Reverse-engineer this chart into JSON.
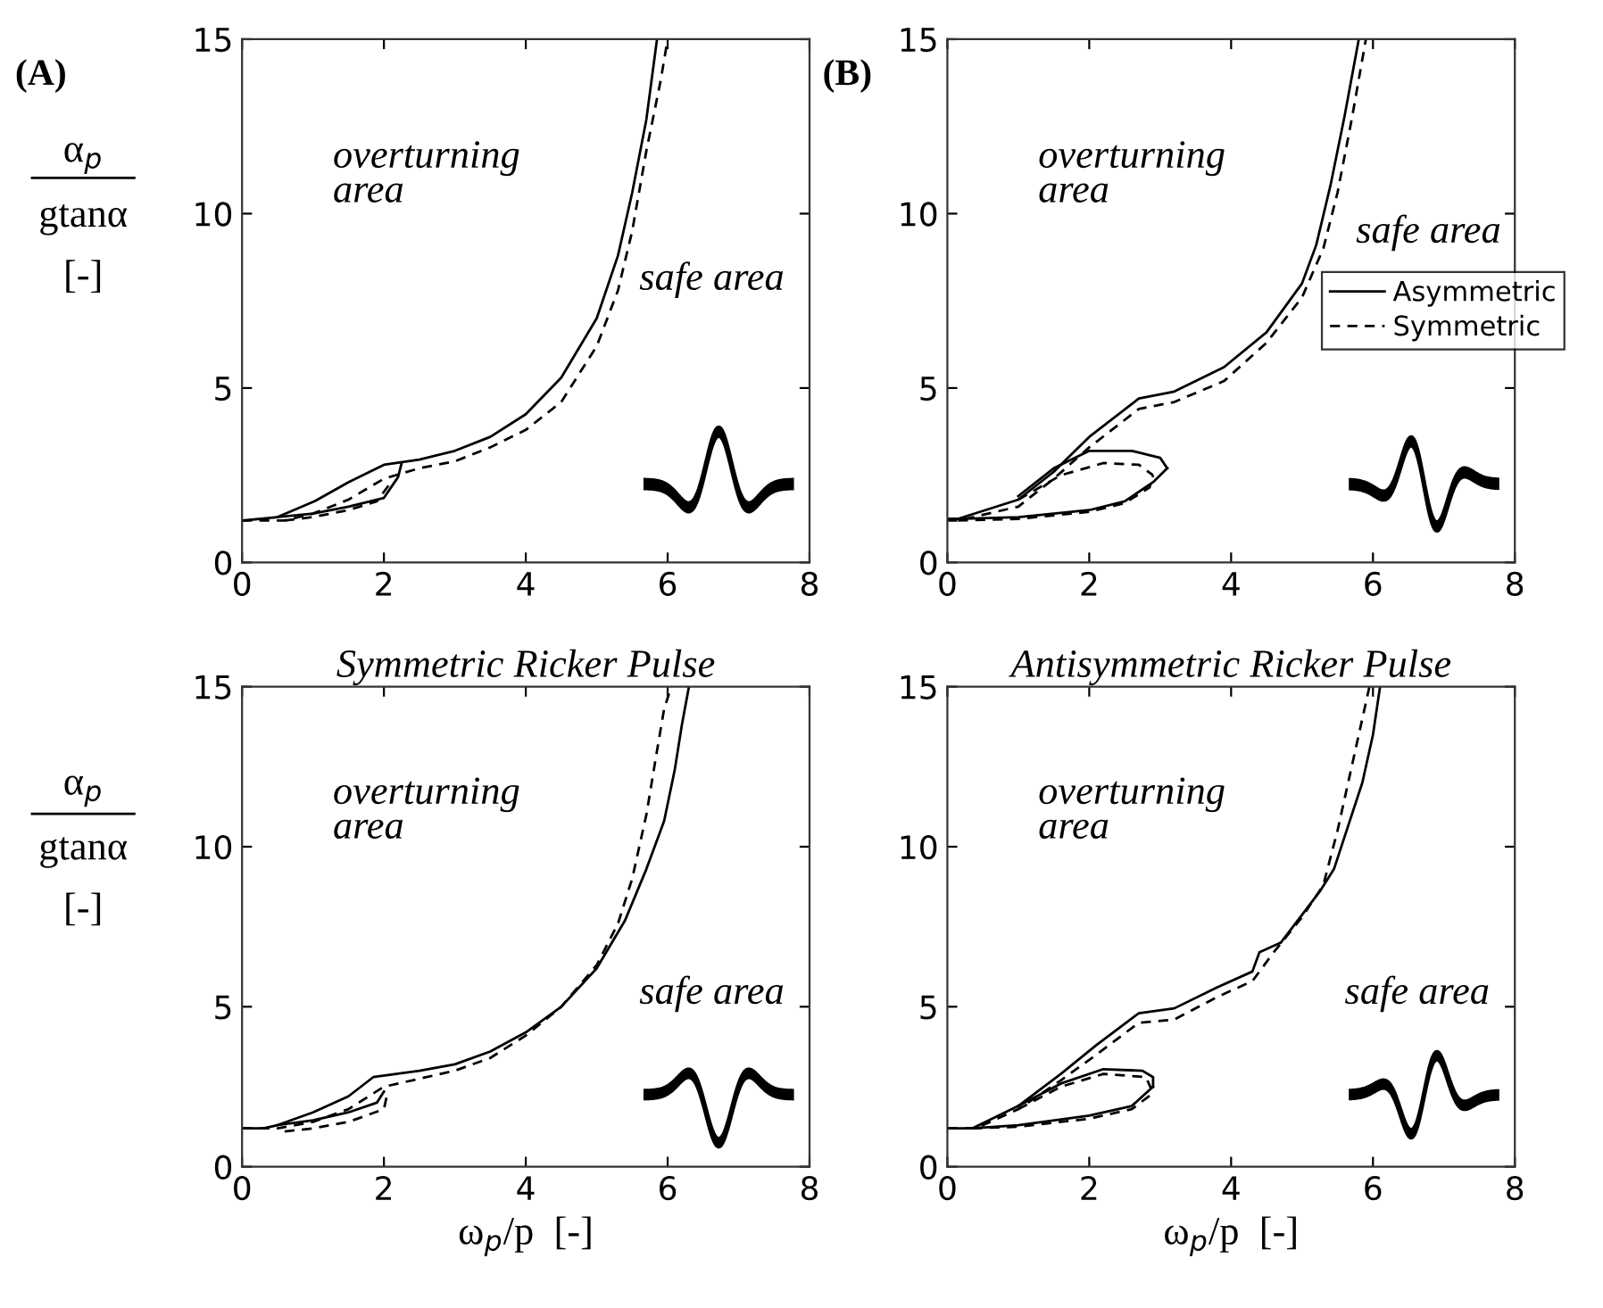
{
  "chart_data": [
    {
      "type": "line",
      "ylabel": "α$_{p}$\ngtanα\n[-]",
      "xlim": [
        0,
        8
      ],
      "ylim": [
        0,
        15
      ],
      "xticks": [
        0,
        2,
        4,
        6,
        8
      ],
      "yticks": [
        0,
        5,
        10,
        15
      ],
      "grid": false,
      "legend": false,
      "annotations": [
        "(A)",
        "overturning\narea",
        "safe area"
      ],
      "series": [
        {
          "color": "#000000",
          "line_style": "solid",
          "x": [
            0,
            0.5,
            1.03,
            1.5,
            2.0,
            2.5,
            3.0,
            3.5,
            4.0,
            4.5,
            5.0,
            5.3,
            5.5,
            5.7,
            5.85
          ],
          "values": [
            1.2,
            1.3,
            1.76,
            2.3,
            2.8,
            2.95,
            3.2,
            3.6,
            4.25,
            5.3,
            7.0,
            8.8,
            10.6,
            12.7,
            15
          ]
        },
        {
          "color": "#000000",
          "line_style": "solid",
          "x": [
            0.5,
            1.0,
            1.5,
            2.0,
            2.2,
            2.25
          ],
          "values": [
            1.3,
            1.4,
            1.6,
            1.85,
            2.45,
            2.85
          ]
        },
        {
          "color": "#000000",
          "line_style": "dashed",
          "x": [
            0,
            0.6,
            1.0,
            1.5,
            2.0,
            2.5,
            3.0,
            3.5,
            4.0,
            4.5,
            5.0,
            5.3,
            5.5,
            5.7,
            5.9,
            6.0
          ],
          "values": [
            1.2,
            1.2,
            1.4,
            1.8,
            2.4,
            2.7,
            2.9,
            3.3,
            3.8,
            4.6,
            6.2,
            7.8,
            9.5,
            11.8,
            13.8,
            15
          ]
        },
        {
          "color": "#000000",
          "line_style": "dashed",
          "x": [
            0.6,
            1.0,
            1.5,
            1.9,
            2.1
          ],
          "values": [
            1.2,
            1.3,
            1.5,
            1.75,
            2.3
          ]
        }
      ]
    },
    {
      "type": "line",
      "xlim": [
        0,
        8
      ],
      "ylim": [
        0,
        15
      ],
      "xticks": [
        0,
        2,
        4,
        6,
        8
      ],
      "yticks": [
        0,
        5,
        10,
        15
      ],
      "grid": false,
      "legend": "right",
      "annotations": [
        "(B)",
        "overturning\narea",
        "safe area"
      ],
      "series": [
        {
          "name": "Asymmetric",
          "color": "#000000",
          "line_style": "solid",
          "x": [
            0,
            0.15,
            1.0,
            1.5,
            2.0,
            2.7,
            3.2,
            3.9,
            4.5,
            5.0,
            5.2,
            5.4,
            5.6,
            5.8
          ],
          "values": [
            1.25,
            1.25,
            1.8,
            2.6,
            3.6,
            4.7,
            4.9,
            5.6,
            6.6,
            8.0,
            9.1,
            10.8,
            12.8,
            15
          ]
        },
        {
          "color": "#000000",
          "line_style": "solid",
          "x": [
            0.15,
            1.0,
            2.0,
            2.5,
            2.9,
            3.1
          ],
          "values": [
            1.25,
            1.3,
            1.5,
            1.75,
            2.3,
            2.7
          ]
        },
        {
          "color": "#000000",
          "line_style": "solid",
          "x": [
            1.0,
            1.5,
            2.0,
            2.6,
            3.0,
            3.1
          ],
          "values": [
            1.9,
            2.7,
            3.2,
            3.2,
            3.0,
            2.7
          ]
        },
        {
          "name": "Symmetric",
          "color": "#000000",
          "line_style": "dashed",
          "x": [
            0,
            0.15,
            1.0,
            1.5,
            2.0,
            2.7,
            3.2,
            3.9,
            4.5,
            5.0,
            5.3,
            5.5,
            5.7,
            5.9
          ],
          "values": [
            1.2,
            1.2,
            1.6,
            2.4,
            3.3,
            4.4,
            4.6,
            5.2,
            6.3,
            7.6,
            9.0,
            10.6,
            12.7,
            15
          ]
        },
        {
          "color": "#000000",
          "line_style": "dashed",
          "x": [
            0.15,
            1.0,
            2.0,
            2.5,
            2.85,
            2.9
          ],
          "values": [
            1.2,
            1.25,
            1.45,
            1.7,
            2.15,
            2.5
          ]
        },
        {
          "color": "#000000",
          "line_style": "dashed",
          "x": [
            1.0,
            1.6,
            2.2,
            2.7,
            2.9
          ],
          "values": [
            1.8,
            2.5,
            2.85,
            2.8,
            2.5
          ]
        }
      ]
    },
    {
      "type": "line",
      "title": "Symmetric Ricker Pulse",
      "xlabel": "ω$_{p}$/p  [-]",
      "ylabel": "α$_{p}$\ngtanα\n[-]",
      "xlim": [
        0,
        8
      ],
      "ylim": [
        0,
        15
      ],
      "xticks": [
        0,
        2,
        4,
        6,
        8
      ],
      "yticks": [
        0,
        5,
        10,
        15
      ],
      "grid": false,
      "legend": false,
      "annotations": [
        "overturning\narea",
        "safe area"
      ],
      "series": [
        {
          "color": "#000000",
          "line_style": "solid",
          "x": [
            0,
            0.3,
            0.5,
            1.0,
            1.5,
            1.85,
            2.5,
            3.0,
            3.5,
            4.0,
            4.5,
            5.0,
            5.4,
            5.7,
            5.95,
            6.1,
            6.2,
            6.3
          ],
          "values": [
            1.2,
            1.2,
            1.3,
            1.7,
            2.2,
            2.8,
            3.0,
            3.2,
            3.6,
            4.2,
            5.0,
            6.2,
            7.7,
            9.3,
            10.8,
            12.4,
            13.8,
            15
          ]
        },
        {
          "color": "#000000",
          "line_style": "solid",
          "x": [
            0.5,
            1.0,
            1.5,
            1.9,
            2.0
          ],
          "values": [
            1.3,
            1.45,
            1.7,
            2.0,
            2.35
          ]
        },
        {
          "color": "#000000",
          "line_style": "dashed",
          "x": [
            0,
            0.5,
            1.0,
            1.5,
            2.0,
            2.5,
            3.0,
            3.5,
            4.0,
            4.5,
            5.0,
            5.3,
            5.5,
            5.7,
            5.85,
            5.95,
            6.05
          ],
          "values": [
            1.2,
            1.2,
            1.4,
            1.8,
            2.5,
            2.75,
            3.0,
            3.4,
            4.1,
            5.0,
            6.3,
            7.6,
            9.0,
            11.0,
            13.0,
            14.3,
            15
          ]
        },
        {
          "color": "#000000",
          "line_style": "dashed",
          "x": [
            0.6,
            1.0,
            1.5,
            2.0,
            2.05
          ],
          "values": [
            1.1,
            1.2,
            1.4,
            1.8,
            2.3
          ]
        }
      ]
    },
    {
      "type": "line",
      "title": "Antisymmetric Ricker Pulse",
      "xlabel": "ω$_{p}$/p  [-]",
      "xlim": [
        0,
        8
      ],
      "ylim": [
        0,
        15
      ],
      "xticks": [
        0,
        2,
        4,
        6,
        8
      ],
      "yticks": [
        0,
        5,
        10,
        15
      ],
      "grid": false,
      "legend": false,
      "annotations": [
        "overturning\narea",
        "safe area"
      ],
      "series": [
        {
          "color": "#000000",
          "line_style": "solid",
          "x": [
            0,
            0.35,
            1.0,
            1.6,
            2.1,
            2.7,
            3.2,
            3.8,
            4.3,
            4.4,
            4.7,
            5.25,
            5.45,
            5.85,
            6.0,
            6.1
          ],
          "values": [
            1.2,
            1.2,
            1.9,
            2.9,
            3.8,
            4.8,
            4.95,
            5.6,
            6.1,
            6.7,
            7.0,
            8.6,
            9.3,
            12.0,
            13.5,
            15
          ]
        },
        {
          "color": "#000000",
          "line_style": "solid",
          "x": [
            0.35,
            1.0,
            2.0,
            2.6,
            2.9
          ],
          "values": [
            1.2,
            1.3,
            1.6,
            1.9,
            2.5
          ]
        },
        {
          "color": "#000000",
          "line_style": "solid",
          "x": [
            1.0,
            1.6,
            2.2,
            2.75,
            2.9,
            2.9
          ],
          "values": [
            1.9,
            2.6,
            3.05,
            3.0,
            2.8,
            2.5
          ]
        },
        {
          "color": "#000000",
          "line_style": "dashed",
          "x": [
            0,
            0.4,
            1.0,
            1.6,
            2.1,
            2.7,
            3.2,
            3.8,
            4.3,
            4.6,
            5.0,
            5.3,
            5.5,
            5.7,
            5.85,
            5.95
          ],
          "values": [
            1.2,
            1.2,
            1.8,
            2.7,
            3.5,
            4.5,
            4.6,
            5.3,
            5.8,
            6.7,
            7.8,
            8.8,
            10.5,
            12.5,
            14.0,
            15
          ]
        },
        {
          "color": "#000000",
          "line_style": "dashed",
          "x": [
            0.35,
            1.0,
            2.0,
            2.6,
            2.9
          ],
          "values": [
            1.2,
            1.25,
            1.5,
            1.8,
            2.3
          ]
        },
        {
          "color": "#000000",
          "line_style": "dashed",
          "x": [
            1.0,
            1.6,
            2.2,
            2.8,
            2.9
          ],
          "values": [
            1.8,
            2.5,
            2.9,
            2.8,
            2.3
          ]
        }
      ]
    }
  ]
}
